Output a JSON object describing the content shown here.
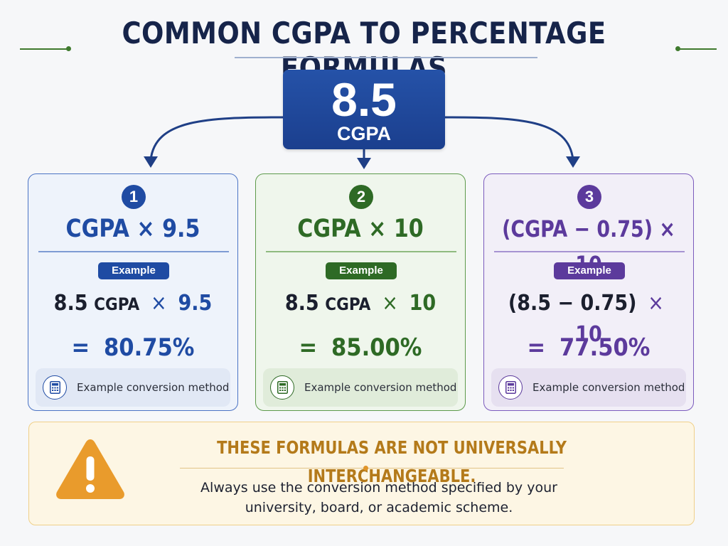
{
  "title": "COMMON CGPA TO PERCENTAGE FORMULAS",
  "hero": {
    "value": "8.5",
    "label": "CGPA"
  },
  "cards": [
    {
      "number": "1",
      "formula": "CGPA × 9.5",
      "badge": "Example",
      "calc": {
        "a": "8.5",
        "unit": "CGPA",
        "op": "×",
        "b": "9.5"
      },
      "equals": "=",
      "result": "80.75%",
      "method": "Example conversion method",
      "icon": "calculator-icon",
      "color": "#1f4ba3"
    },
    {
      "number": "2",
      "formula": "CGPA × 10",
      "badge": "Example",
      "calc": {
        "a": "8.5",
        "unit": "CGPA",
        "op": "×",
        "b": "10"
      },
      "equals": "=",
      "result": "85.00%",
      "method": "Example conversion method",
      "icon": "calculator-icon",
      "color": "#2e6a25"
    },
    {
      "number": "3",
      "formula": "(CGPA − 0.75) × 10",
      "badge": "Example",
      "calc": {
        "a": "(8.5 − 0.75)",
        "op": "×",
        "b": "10"
      },
      "equals": "=",
      "result": "77.50%",
      "method": "Example conversion method",
      "icon": "calculator-icon",
      "color": "#5c3a9c"
    }
  ],
  "warning": {
    "icon": "warning-triangle-icon",
    "title": "THESE FORMULAS ARE NOT UNIVERSALLY INTERCHANGEABLE.",
    "text_line1": "Always use the conversion method specified by your",
    "text_line2": "university, board, or academic scheme.",
    "color": "#e0952a"
  }
}
